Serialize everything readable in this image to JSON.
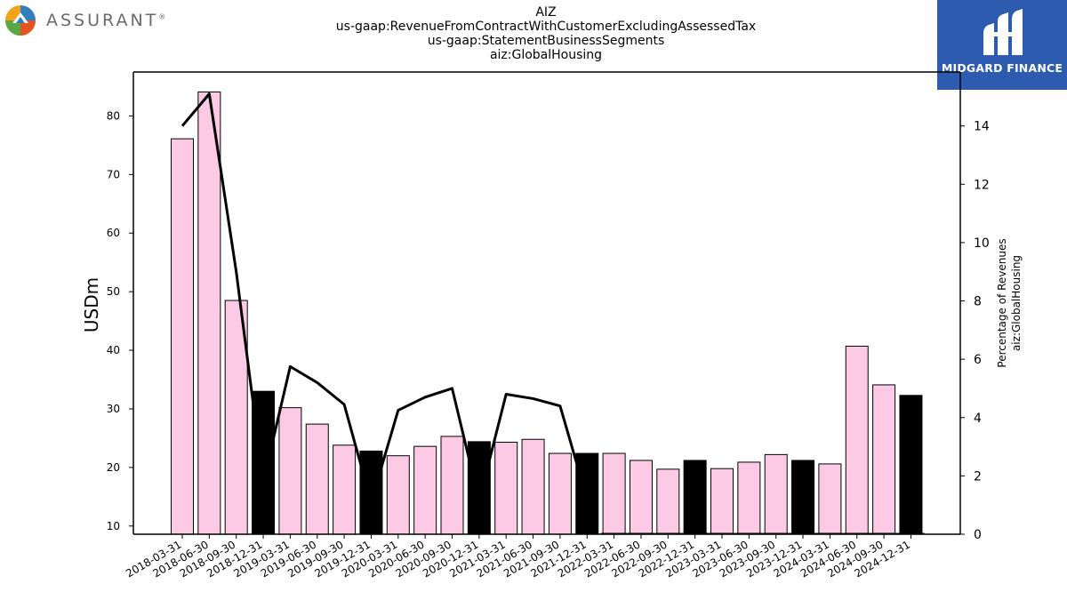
{
  "header": {
    "left_logo_text": "ASSURANT",
    "left_logo_mark": "®",
    "right_logo_text": "MIDGARD FINANCE"
  },
  "chart_data": {
    "type": "bar",
    "title_lines": [
      "AIZ",
      "us-gaap:RevenueFromContractWithCustomerExcludingAssessedTax",
      "us-gaap:StatementBusinessSegments",
      "aiz:GlobalHousing"
    ],
    "ylabel": "USDm",
    "y2label_lines": [
      "Percentage of Revenues",
      "aiz:GlobalHousing"
    ],
    "ylim": [
      8.6,
      87.5
    ],
    "y2lim": [
      0,
      15.85
    ],
    "yticks": [
      10,
      20,
      30,
      40,
      50,
      60,
      70,
      80
    ],
    "y2ticks": [
      0,
      2,
      4,
      6,
      8,
      10,
      12,
      14
    ],
    "categories": [
      "2018-03-31",
      "2018-06-30",
      "2018-09-30",
      "2018-12-31",
      "2019-03-31",
      "2019-06-30",
      "2019-09-30",
      "2019-12-31",
      "2020-03-31",
      "2020-06-30",
      "2020-09-30",
      "2020-12-31",
      "2021-03-31",
      "2021-06-30",
      "2021-09-30",
      "2021-12-31",
      "2022-03-31",
      "2022-06-30",
      "2022-09-30",
      "2022-12-31",
      "2023-03-31",
      "2023-06-30",
      "2023-09-30",
      "2023-12-31",
      "2024-03-31",
      "2024-06-30",
      "2024-09-30",
      "2024-12-31"
    ],
    "series": [
      {
        "type": "bar",
        "axis": "left",
        "values": [
          76.1,
          84.1,
          48.5,
          33.0,
          30.2,
          27.4,
          23.8,
          22.8,
          22.0,
          23.6,
          25.3,
          24.4,
          24.3,
          24.8,
          22.4,
          22.4,
          22.4,
          21.2,
          19.7,
          21.2,
          19.8,
          20.9,
          22.2,
          21.2,
          20.6,
          40.7,
          34.1,
          32.3
        ]
      },
      {
        "type": "line",
        "axis": "right",
        "values": [
          14.0,
          15.1,
          9.0,
          1.8,
          5.75,
          5.2,
          4.45,
          1.1,
          4.25,
          4.7,
          5.0,
          1.15,
          4.8,
          4.65,
          4.4,
          1.2,
          null,
          null,
          null,
          null,
          null,
          null,
          null,
          null,
          null,
          null,
          null,
          null
        ]
      }
    ],
    "colors": {
      "bar_regular": "#fccae4",
      "bar_year_end": "#000000",
      "edge": "#000000",
      "line": "#000000"
    },
    "grid": false
  }
}
